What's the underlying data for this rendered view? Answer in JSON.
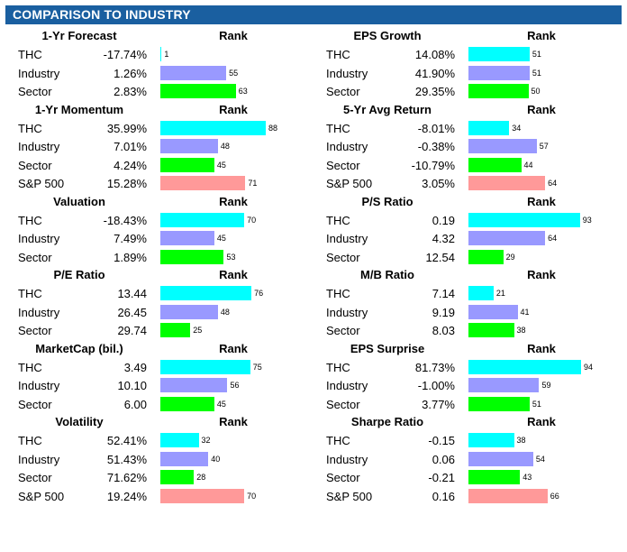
{
  "title": "COMPARISON TO INDUSTRY",
  "colors": {
    "header": "#1a5fa0",
    "subject": "#00ffff",
    "industry": "#9999ff",
    "sector": "#00ff00",
    "sp500": "#ff9999"
  },
  "chart_data": {
    "type": "bar",
    "title": "COMPARISON TO INDUSTRY",
    "rank_label": "Rank",
    "rank_range": [
      0,
      100
    ],
    "panels": [
      {
        "title": "1-Yr Forecast",
        "column": "left",
        "rows": [
          {
            "label": "THC",
            "value": "-17.74%",
            "rank": 1
          },
          {
            "label": "Industry",
            "value": "1.26%",
            "rank": 55
          },
          {
            "label": "Sector",
            "value": "2.83%",
            "rank": 63
          }
        ]
      },
      {
        "title": "1-Yr Momentum",
        "column": "left",
        "rows": [
          {
            "label": "THC",
            "value": "35.99%",
            "rank": 88
          },
          {
            "label": "Industry",
            "value": "7.01%",
            "rank": 48
          },
          {
            "label": "Sector",
            "value": "4.24%",
            "rank": 45
          },
          {
            "label": "S&P 500",
            "value": "15.28%",
            "rank": 71
          }
        ]
      },
      {
        "title": "Valuation",
        "column": "left",
        "rows": [
          {
            "label": "THC",
            "value": "-18.43%",
            "rank": 70
          },
          {
            "label": "Industry",
            "value": "7.49%",
            "rank": 45
          },
          {
            "label": "Sector",
            "value": "1.89%",
            "rank": 53
          }
        ]
      },
      {
        "title": "P/E Ratio",
        "column": "left",
        "rows": [
          {
            "label": "THC",
            "value": "13.44",
            "rank": 76
          },
          {
            "label": "Industry",
            "value": "26.45",
            "rank": 48
          },
          {
            "label": "Sector",
            "value": "29.74",
            "rank": 25
          }
        ]
      },
      {
        "title": "MarketCap (bil.)",
        "column": "left",
        "rows": [
          {
            "label": "THC",
            "value": "3.49",
            "rank": 75
          },
          {
            "label": "Industry",
            "value": "10.10",
            "rank": 56
          },
          {
            "label": "Sector",
            "value": "6.00",
            "rank": 45
          }
        ]
      },
      {
        "title": "Volatility",
        "column": "left",
        "rows": [
          {
            "label": "THC",
            "value": "52.41%",
            "rank": 32
          },
          {
            "label": "Industry",
            "value": "51.43%",
            "rank": 40
          },
          {
            "label": "Sector",
            "value": "71.62%",
            "rank": 28
          },
          {
            "label": "S&P 500",
            "value": "19.24%",
            "rank": 70
          }
        ]
      },
      {
        "title": "EPS Growth",
        "column": "right",
        "rows": [
          {
            "label": "THC",
            "value": "14.08%",
            "rank": 51
          },
          {
            "label": "Industry",
            "value": "41.90%",
            "rank": 51
          },
          {
            "label": "Sector",
            "value": "29.35%",
            "rank": 50
          }
        ]
      },
      {
        "title": "5-Yr Avg Return",
        "column": "right",
        "rows": [
          {
            "label": "THC",
            "value": "-8.01%",
            "rank": 34
          },
          {
            "label": "Industry",
            "value": "-0.38%",
            "rank": 57
          },
          {
            "label": "Sector",
            "value": "-10.79%",
            "rank": 44
          },
          {
            "label": "S&P 500",
            "value": "3.05%",
            "rank": 64
          }
        ]
      },
      {
        "title": "P/S Ratio",
        "column": "right",
        "rows": [
          {
            "label": "THC",
            "value": "0.19",
            "rank": 93
          },
          {
            "label": "Industry",
            "value": "4.32",
            "rank": 64
          },
          {
            "label": "Sector",
            "value": "12.54",
            "rank": 29
          }
        ]
      },
      {
        "title": "M/B Ratio",
        "column": "right",
        "rows": [
          {
            "label": "THC",
            "value": "7.14",
            "rank": 21
          },
          {
            "label": "Industry",
            "value": "9.19",
            "rank": 41
          },
          {
            "label": "Sector",
            "value": "8.03",
            "rank": 38
          }
        ]
      },
      {
        "title": "EPS Surprise",
        "column": "right",
        "rows": [
          {
            "label": "THC",
            "value": "81.73%",
            "rank": 94
          },
          {
            "label": "Industry",
            "value": "-1.00%",
            "rank": 59
          },
          {
            "label": "Sector",
            "value": "3.77%",
            "rank": 51
          }
        ]
      },
      {
        "title": "Sharpe Ratio",
        "column": "right",
        "rows": [
          {
            "label": "THC",
            "value": "-0.15",
            "rank": 38
          },
          {
            "label": "Industry",
            "value": "0.06",
            "rank": 54
          },
          {
            "label": "Sector",
            "value": "-0.21",
            "rank": 43
          },
          {
            "label": "S&P 500",
            "value": "0.16",
            "rank": 66
          }
        ]
      }
    ]
  }
}
